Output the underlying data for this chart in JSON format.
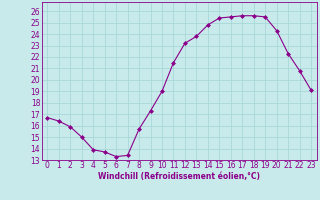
{
  "x": [
    0,
    1,
    2,
    3,
    4,
    5,
    6,
    7,
    8,
    9,
    10,
    11,
    12,
    13,
    14,
    15,
    16,
    17,
    18,
    19,
    20,
    21,
    22,
    23
  ],
  "y": [
    16.7,
    16.4,
    15.9,
    15.0,
    13.9,
    13.7,
    13.3,
    13.4,
    15.7,
    17.3,
    19.0,
    21.5,
    23.2,
    23.8,
    24.8,
    25.4,
    25.5,
    25.6,
    25.6,
    25.5,
    24.3,
    22.3,
    20.8,
    19.1
  ],
  "line_color": "#8B008B",
  "marker": "D",
  "marker_size": 2,
  "xlabel": "Windchill (Refroidissement éolien,°C)",
  "ylabel_ticks": [
    13,
    14,
    15,
    16,
    17,
    18,
    19,
    20,
    21,
    22,
    23,
    24,
    25,
    26
  ],
  "ylim": [
    13,
    26.8
  ],
  "xlim": [
    -0.5,
    23.5
  ],
  "bg_color": "#c8eaea",
  "grid_color": "#a8d8d8",
  "tick_fontsize": 5.5,
  "xlabel_fontsize": 5.5
}
